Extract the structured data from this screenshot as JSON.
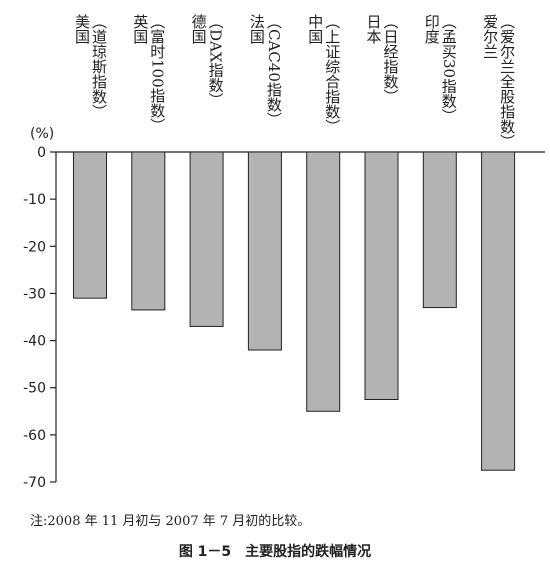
{
  "chart_data": {
    "type": "bar",
    "categories": [
      {
        "name": "美国",
        "index": "（道琼斯指数）"
      },
      {
        "name": "英国",
        "index": "（富时100指数）"
      },
      {
        "name": "德国",
        "index": "（DAX指数）"
      },
      {
        "name": "法国",
        "index": "（CAC40指数）"
      },
      {
        "name": "中国",
        "index": "（上证综合指数）"
      },
      {
        "name": "日本",
        "index": "（日经指数）"
      },
      {
        "name": "印度",
        "index": "（孟买30指数）"
      },
      {
        "name": "爱尔兰",
        "index": "（爱尔兰全股指数）"
      }
    ],
    "values": [
      -31,
      -33.5,
      -37,
      -42,
      -55,
      -52.5,
      -33,
      -67.5
    ],
    "unit_label": "(%)",
    "ylim": [
      -70,
      0
    ],
    "yticks": [
      0,
      -10,
      -20,
      -30,
      -40,
      -50,
      -60,
      -70
    ],
    "grid": false,
    "bar_color": "#b3b3b3"
  },
  "note": "注:2008 年 11 月初与 2007 年 7 月初的比较。",
  "caption": "图 1－5　主要股指的跌幅情况"
}
